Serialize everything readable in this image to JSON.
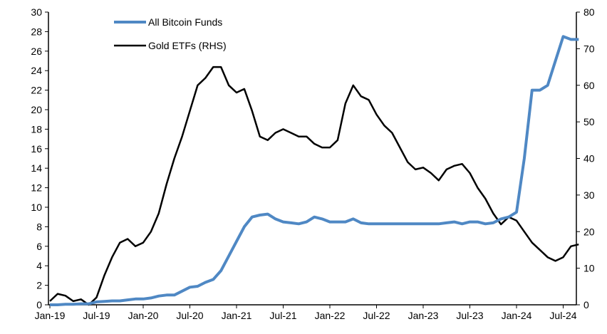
{
  "chart_data": {
    "type": "line",
    "title": "",
    "xlabel": "",
    "ylabel": "",
    "y2label": "",
    "x_ticks": [
      "Jan-19",
      "Jul-19",
      "Jan-20",
      "Jul-20",
      "Jan-21",
      "Jul-21",
      "Jan-22",
      "Jul-22",
      "Jan-23",
      "Jul-23",
      "Jan-24",
      "Jul-24"
    ],
    "ylim": [
      0,
      30
    ],
    "y_ticks": [
      0,
      2,
      4,
      6,
      8,
      10,
      12,
      14,
      16,
      18,
      20,
      22,
      24,
      26,
      28,
      30
    ],
    "y2lim": [
      0,
      80
    ],
    "y2_ticks": [
      0,
      10,
      20,
      30,
      40,
      50,
      60,
      70,
      80
    ],
    "grid": false,
    "legend_position": "top-left",
    "x": [
      "2019-01",
      "2019-02",
      "2019-03",
      "2019-04",
      "2019-05",
      "2019-06",
      "2019-07",
      "2019-08",
      "2019-09",
      "2019-10",
      "2019-11",
      "2019-12",
      "2020-01",
      "2020-02",
      "2020-03",
      "2020-04",
      "2020-05",
      "2020-06",
      "2020-07",
      "2020-08",
      "2020-09",
      "2020-10",
      "2020-11",
      "2020-12",
      "2021-01",
      "2021-02",
      "2021-03",
      "2021-04",
      "2021-05",
      "2021-06",
      "2021-07",
      "2021-08",
      "2021-09",
      "2021-10",
      "2021-11",
      "2021-12",
      "2022-01",
      "2022-02",
      "2022-03",
      "2022-04",
      "2022-05",
      "2022-06",
      "2022-07",
      "2022-08",
      "2022-09",
      "2022-10",
      "2022-11",
      "2022-12",
      "2023-01",
      "2023-02",
      "2023-03",
      "2023-04",
      "2023-05",
      "2023-06",
      "2023-07",
      "2023-08",
      "2023-09",
      "2023-10",
      "2023-11",
      "2023-12",
      "2024-01",
      "2024-02",
      "2024-03",
      "2024-04",
      "2024-05",
      "2024-06",
      "2024-07",
      "2024-08",
      "2024-09"
    ],
    "series": [
      {
        "name": "All Bitcoin Funds",
        "axis": "left",
        "color": "#4f88c4",
        "values": [
          0,
          0,
          0.05,
          0.05,
          0.1,
          0.1,
          0.3,
          0.35,
          0.4,
          0.4,
          0.5,
          0.6,
          0.6,
          0.7,
          0.9,
          1.0,
          1.0,
          1.4,
          1.8,
          1.9,
          2.3,
          2.6,
          3.5,
          5.0,
          6.5,
          8.0,
          9.0,
          9.2,
          9.3,
          8.8,
          8.5,
          8.4,
          8.3,
          8.5,
          9.0,
          8.8,
          8.5,
          8.5,
          8.5,
          8.8,
          8.4,
          8.3,
          8.3,
          8.3,
          8.3,
          8.3,
          8.3,
          8.3,
          8.3,
          8.3,
          8.3,
          8.4,
          8.5,
          8.3,
          8.5,
          8.5,
          8.3,
          8.4,
          8.8,
          9.0,
          9.5,
          15.0,
          22.0,
          22.0,
          22.5,
          25.0,
          27.5,
          27.2,
          27.2
        ]
      },
      {
        "name": "Gold ETFs (RHS)",
        "axis": "right",
        "color": "#000000",
        "values": [
          1,
          3,
          2.5,
          1,
          1.5,
          0,
          2,
          8,
          13,
          17,
          18,
          16,
          17,
          20,
          25,
          33,
          40,
          46,
          53,
          60,
          62,
          65,
          65,
          60,
          58,
          59,
          53,
          46,
          45,
          47,
          48,
          47,
          46,
          46,
          44,
          43,
          43,
          45,
          55,
          60,
          57,
          56,
          52,
          49,
          47,
          43,
          39,
          37,
          37.5,
          36,
          34,
          37,
          38,
          38.5,
          36,
          32,
          29,
          25,
          22,
          24,
          23,
          20,
          17,
          15,
          13,
          12,
          13,
          16,
          16.5
        ]
      }
    ]
  }
}
